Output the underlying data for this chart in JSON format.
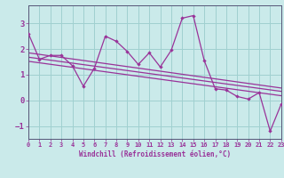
{
  "xlabel": "Windchill (Refroidissement éolien,°C)",
  "bg_color": "#caeaea",
  "grid_color": "#a0d0d0",
  "line_color": "#993399",
  "spine_color": "#555577",
  "x_data": [
    0,
    1,
    2,
    3,
    4,
    5,
    6,
    7,
    8,
    9,
    10,
    11,
    12,
    13,
    14,
    15,
    16,
    17,
    18,
    19,
    20,
    21,
    22,
    23
  ],
  "y_scatter": [
    2.6,
    1.6,
    1.75,
    1.75,
    1.35,
    0.55,
    1.25,
    2.5,
    2.3,
    1.9,
    1.4,
    1.85,
    1.3,
    1.95,
    3.2,
    3.3,
    1.55,
    0.45,
    0.4,
    0.15,
    0.05,
    0.3,
    -1.2,
    -0.15
  ],
  "y_trend_top_start": 1.85,
  "y_trend_top_end": 0.48,
  "y_trend_mid_start": 1.68,
  "y_trend_mid_end": 0.35,
  "y_trend_bot_start": 1.52,
  "y_trend_bot_end": 0.18,
  "xlim": [
    0,
    23
  ],
  "ylim": [
    -1.5,
    3.7
  ],
  "yticks": [
    -1,
    0,
    1,
    2,
    3
  ],
  "xticks": [
    0,
    1,
    2,
    3,
    4,
    5,
    6,
    7,
    8,
    9,
    10,
    11,
    12,
    13,
    14,
    15,
    16,
    17,
    18,
    19,
    20,
    21,
    22,
    23
  ]
}
